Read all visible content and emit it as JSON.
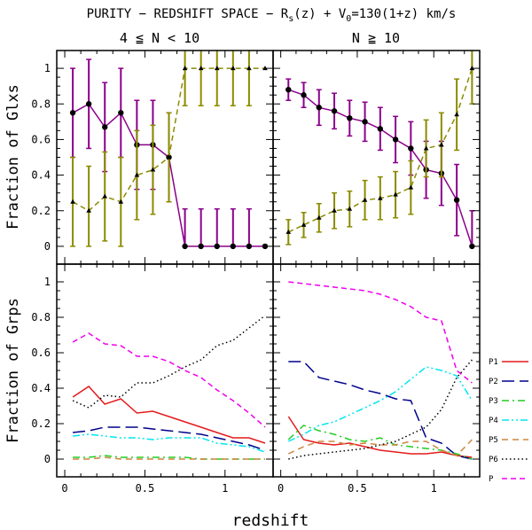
{
  "title": "PURITY − REDSHIFT SPACE − R_s(z) + V_0=130(1+z) km/s",
  "title_parts": {
    "prefix": "PURITY − REDSHIFT SPACE − R",
    "sub1": "s",
    "middle": "(z) + V",
    "sub2": "0",
    "suffix": "=130(1+z) km/s"
  },
  "xlabel": "redshift",
  "column_titles": [
    "4 ≦ N < 10",
    "N ≧ 10"
  ],
  "colors": {
    "purple": "#8b008b",
    "olive": "#8b8b00",
    "red": "#e41a1c",
    "blue": "#00008b",
    "green": "#22cc22",
    "cyan": "#00e5ee",
    "orange": "#cd853f",
    "black": "#000000",
    "magenta": "#ee00ee"
  },
  "chart_data": [
    {
      "type": "line",
      "panel": "top-left",
      "ylabel": "Fraction of Glxs",
      "xlim": [
        -0.05,
        1.3
      ],
      "ylim": [
        -0.1,
        1.1
      ],
      "xticks": [
        0,
        0.5,
        1
      ],
      "xtick_labels": [
        "0",
        "0.5",
        "1"
      ],
      "yticks": [
        0,
        0.2,
        0.4,
        0.6,
        0.8,
        1
      ],
      "ytick_labels": [
        "0",
        "0.2",
        "0.4",
        "0.6",
        "0.8",
        "1"
      ],
      "x": [
        0.05,
        0.15,
        0.25,
        0.35,
        0.45,
        0.55,
        0.65,
        0.75,
        0.85,
        0.95,
        1.05,
        1.15,
        1.25
      ],
      "series": [
        {
          "name": "groups",
          "color_key": "purple",
          "dash": "solid",
          "markers": true,
          "values": [
            0.75,
            0.8,
            0.67,
            0.75,
            0.57,
            0.57,
            0.5,
            0,
            0,
            0,
            0,
            0,
            0
          ],
          "err": [
            0.25,
            0.25,
            0.25,
            0.25,
            0.25,
            0.25,
            0.25,
            0.21,
            0.21,
            0.21,
            0.21,
            0.21,
            0
          ],
          "err_x_min": 0
        },
        {
          "name": "field",
          "color_key": "olive",
          "dash": "dashed",
          "markers": true,
          "values": [
            0.25,
            0.2,
            0.28,
            0.25,
            0.4,
            0.43,
            0.5,
            1,
            1,
            1,
            1,
            1,
            1
          ],
          "err": [
            0.25,
            0.25,
            0.25,
            0.25,
            0.25,
            0.25,
            0.25,
            0.21,
            0.21,
            0.21,
            0.21,
            0.21,
            0
          ],
          "err_x_min": 0
        }
      ]
    },
    {
      "type": "line",
      "panel": "top-right",
      "xlim": [
        -0.05,
        1.3
      ],
      "ylim": [
        -0.1,
        1.1
      ],
      "xticks": [
        0,
        0.5,
        1
      ],
      "xtick_labels": [
        "0",
        "0.5",
        "1"
      ],
      "yticks": [
        0,
        0.2,
        0.4,
        0.6,
        0.8,
        1
      ],
      "x": [
        0.05,
        0.15,
        0.25,
        0.35,
        0.45,
        0.55,
        0.65,
        0.75,
        0.85,
        0.95,
        1.05,
        1.15,
        1.25
      ],
      "series": [
        {
          "name": "groups",
          "color_key": "purple",
          "dash": "solid",
          "markers": true,
          "values": [
            0.88,
            0.85,
            0.78,
            0.76,
            0.72,
            0.7,
            0.66,
            0.6,
            0.55,
            0.43,
            0.41,
            0.26,
            0
          ],
          "err": [
            0.06,
            0.07,
            0.1,
            0.1,
            0.1,
            0.11,
            0.12,
            0.13,
            0.15,
            0.16,
            0.18,
            0.2,
            0.2
          ],
          "err_x_min": 0
        },
        {
          "name": "field",
          "color_key": "olive",
          "dash": "dashed",
          "markers": true,
          "values": [
            0.08,
            0.12,
            0.16,
            0.2,
            0.21,
            0.26,
            0.27,
            0.29,
            0.33,
            0.55,
            0.57,
            0.74,
            1
          ],
          "err": [
            0.07,
            0.07,
            0.08,
            0.1,
            0.1,
            0.11,
            0.12,
            0.13,
            0.15,
            0.16,
            0.18,
            0.2,
            0.2
          ],
          "err_x_min": 0
        }
      ]
    },
    {
      "type": "line",
      "panel": "bottom-left",
      "ylabel": "Fraction of Grps",
      "xlim": [
        -0.05,
        1.3
      ],
      "ylim": [
        -0.1,
        1.1
      ],
      "xticks": [
        0,
        0.5,
        1
      ],
      "xtick_labels": [
        "0",
        "0.5",
        "1"
      ],
      "yticks": [
        0,
        0.2,
        0.4,
        0.6,
        0.8,
        1
      ],
      "ytick_labels": [
        "0",
        "0.2",
        "0.4",
        "0.6",
        "0.8",
        "1"
      ],
      "x": [
        0.05,
        0.15,
        0.25,
        0.35,
        0.45,
        0.55,
        0.65,
        0.75,
        0.85,
        0.95,
        1.05,
        1.15,
        1.25
      ],
      "series": [
        {
          "name": "P1",
          "color_key": "red",
          "dash": "solid",
          "values": [
            0.35,
            0.41,
            0.31,
            0.34,
            0.26,
            0.27,
            0.24,
            0.21,
            0.18,
            0.15,
            0.12,
            0.12,
            0.09
          ]
        },
        {
          "name": "P2",
          "color_key": "blue",
          "dash": "longdash",
          "values": [
            0.15,
            0.16,
            0.18,
            0.18,
            0.18,
            0.17,
            0.16,
            0.15,
            0.14,
            0.12,
            0.1,
            0.08,
            0.05
          ]
        },
        {
          "name": "P3",
          "color_key": "green",
          "dash": "dashdot",
          "values": [
            0.01,
            0.01,
            0.02,
            0.01,
            0.01,
            0.01,
            0.01,
            0.01,
            0,
            0,
            0,
            0,
            0
          ]
        },
        {
          "name": "P4",
          "color_key": "cyan",
          "dash": "dashdotdot",
          "values": [
            0.13,
            0.14,
            0.13,
            0.12,
            0.12,
            0.11,
            0.12,
            0.12,
            0.12,
            0.09,
            0.08,
            0.07,
            0.04
          ]
        },
        {
          "name": "P5",
          "color_key": "orange",
          "dash": "mediumdash",
          "values": [
            0,
            0,
            0.01,
            0,
            0,
            0,
            0,
            0,
            0,
            0,
            0,
            0,
            0
          ]
        },
        {
          "name": "P6",
          "color_key": "black",
          "dash": "dotted",
          "values": [
            0.33,
            0.29,
            0.36,
            0.35,
            0.43,
            0.43,
            0.47,
            0.52,
            0.56,
            0.64,
            0.67,
            0.74,
            0.81
          ]
        },
        {
          "name": "P",
          "color_key": "magenta",
          "dash": "shortdash",
          "values": [
            0.66,
            0.71,
            0.65,
            0.64,
            0.58,
            0.58,
            0.55,
            0.5,
            0.46,
            0.39,
            0.33,
            0.26,
            0.18
          ]
        }
      ]
    },
    {
      "type": "line",
      "panel": "bottom-right",
      "xlim": [
        -0.05,
        1.3
      ],
      "ylim": [
        -0.1,
        1.1
      ],
      "xticks": [
        0,
        0.5,
        1
      ],
      "xtick_labels": [
        "0",
        "0.5",
        "1"
      ],
      "yticks": [
        0,
        0.2,
        0.4,
        0.6,
        0.8,
        1
      ],
      "x": [
        0.05,
        0.15,
        0.25,
        0.35,
        0.45,
        0.55,
        0.65,
        0.75,
        0.85,
        0.95,
        1.05,
        1.15,
        1.25
      ],
      "series": [
        {
          "name": "P1",
          "color_key": "red",
          "dash": "solid",
          "values": [
            0.24,
            0.11,
            0.09,
            0.08,
            0.09,
            0.07,
            0.05,
            0.04,
            0.03,
            0.03,
            0.04,
            0.02,
            0.01
          ]
        },
        {
          "name": "P2",
          "color_key": "blue",
          "dash": "longdash",
          "values": [
            0.55,
            0.55,
            0.46,
            0.44,
            0.42,
            0.39,
            0.37,
            0.34,
            0.33,
            0.12,
            0.09,
            0.02,
            0
          ]
        },
        {
          "name": "P3",
          "color_key": "green",
          "dash": "dashdot",
          "values": [
            0.11,
            0.19,
            0.16,
            0.14,
            0.11,
            0.1,
            0.12,
            0.08,
            0.07,
            0.06,
            0.05,
            0.03,
            0
          ]
        },
        {
          "name": "P4",
          "color_key": "cyan",
          "dash": "dashdotdot",
          "values": [
            0.1,
            0.14,
            0.19,
            0.21,
            0.25,
            0.29,
            0.33,
            0.38,
            0.45,
            0.52,
            0.5,
            0.47,
            0.33
          ]
        },
        {
          "name": "P5",
          "color_key": "orange",
          "dash": "mediumdash",
          "values": [
            0.03,
            0.07,
            0.1,
            0.1,
            0.08,
            0.09,
            0.08,
            0.08,
            0.1,
            0.1,
            0.05,
            0.02,
            0.11
          ]
        },
        {
          "name": "P6",
          "color_key": "black",
          "dash": "dotted",
          "values": [
            0,
            0.02,
            0.03,
            0.04,
            0.05,
            0.06,
            0.08,
            0.1,
            0.14,
            0.18,
            0.28,
            0.46,
            0.56
          ]
        },
        {
          "name": "P",
          "color_key": "magenta",
          "dash": "shortdash",
          "values": [
            1,
            0.99,
            0.98,
            0.97,
            0.96,
            0.95,
            0.93,
            0.9,
            0.86,
            0.8,
            0.78,
            0.5,
            0.43
          ]
        }
      ]
    }
  ],
  "legend": {
    "placement": "right of bottom-right panel",
    "entries": [
      {
        "label": "P1",
        "color_key": "red",
        "dash": "solid"
      },
      {
        "label": "P2",
        "color_key": "blue",
        "dash": "longdash"
      },
      {
        "label": "P3",
        "color_key": "green",
        "dash": "dashdot"
      },
      {
        "label": "P4",
        "color_key": "cyan",
        "dash": "dashdotdot"
      },
      {
        "label": "P5",
        "color_key": "orange",
        "dash": "mediumdash"
      },
      {
        "label": "P6",
        "color_key": "black",
        "dash": "dotted"
      },
      {
        "label": "P",
        "color_key": "magenta",
        "dash": "shortdash"
      }
    ]
  }
}
